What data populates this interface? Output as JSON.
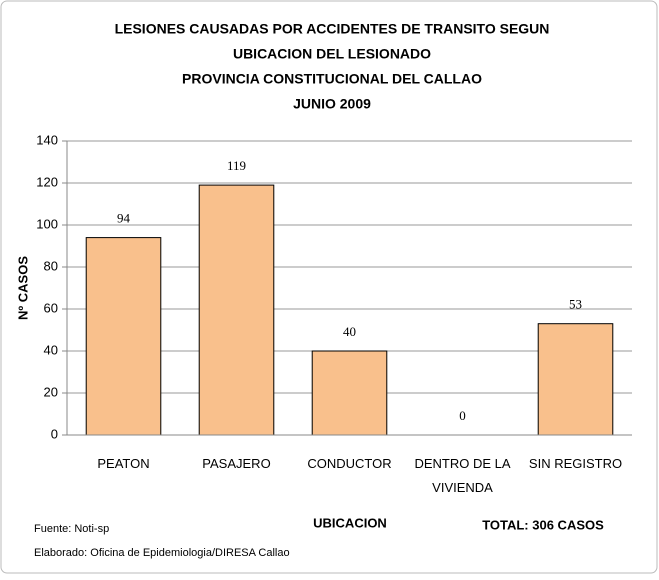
{
  "chart_data": {
    "type": "bar",
    "title": [
      "LESIONES CAUSADAS POR ACCIDENTES DE TRANSITO SEGUN",
      "UBICACION DEL LESIONADO",
      "PROVINCIA CONSTITUCIONAL DEL CALLAO",
      "JUNIO  2009"
    ],
    "categories": [
      "PEATON",
      "PASAJERO",
      "CONDUCTOR",
      "DENTRO DE LA VIVIENDA",
      "SIN REGISTRO"
    ],
    "values": [
      94,
      119,
      40,
      0,
      53
    ],
    "color": "#f9c08c",
    "ylim": [
      0,
      140
    ],
    "yticks": [
      0,
      20,
      40,
      60,
      80,
      100,
      120,
      140
    ],
    "grid": true,
    "x_label": "UBICACION",
    "y_label": "Nº CASOS",
    "annotations": [
      "TOTAL: 306 CASOS",
      "Fuente: Noti-sp",
      "Elaborado: Oficina de Epidemiologia/DIRESA Callao"
    ]
  }
}
